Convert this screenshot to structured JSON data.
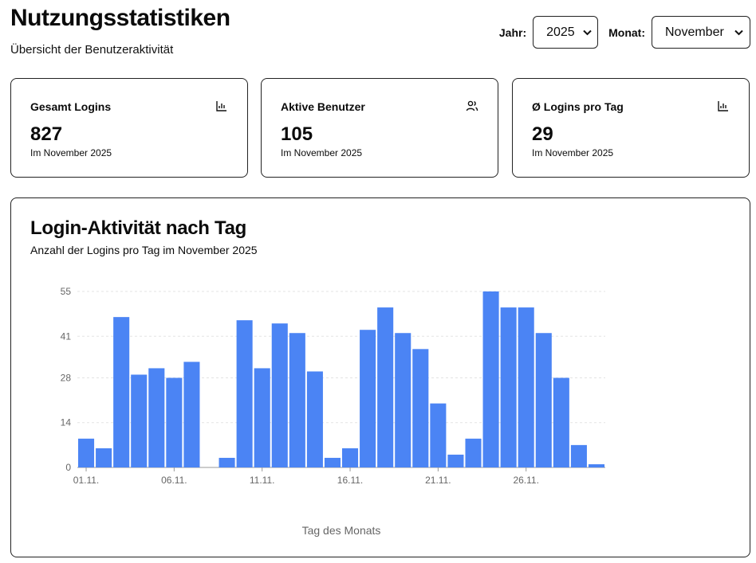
{
  "header": {
    "title": "Nutzungsstatistiken",
    "subtitle": "Übersicht der Benutzeraktivität"
  },
  "filters": {
    "year_label": "Jahr:",
    "year_value": "2025",
    "month_label": "Monat:",
    "month_value": "November"
  },
  "stats": [
    {
      "label": "Gesamt Logins",
      "value": "827",
      "caption": "Im November 2025",
      "icon": "bar-chart-icon"
    },
    {
      "label": "Aktive Benutzer",
      "value": "105",
      "caption": "Im November 2025",
      "icon": "users-icon"
    },
    {
      "label": "Ø Logins pro Tag",
      "value": "29",
      "caption": "Im November 2025",
      "icon": "bar-chart-icon"
    }
  ],
  "chart_card": {
    "title": "Login-Aktivität nach Tag",
    "subtitle": "Anzahl der Logins pro Tag im November 2025"
  },
  "chart_data": {
    "type": "bar",
    "categories": [
      "01.11.",
      "02.11.",
      "03.11.",
      "04.11.",
      "05.11.",
      "06.11.",
      "07.11.",
      "08.11.",
      "09.11.",
      "10.11.",
      "11.11.",
      "12.11.",
      "13.11.",
      "14.11.",
      "15.11.",
      "16.11.",
      "17.11.",
      "18.11.",
      "19.11.",
      "20.11.",
      "21.11.",
      "22.11.",
      "23.11.",
      "24.11.",
      "25.11.",
      "26.11.",
      "27.11.",
      "28.11.",
      "29.11.",
      "30.11."
    ],
    "values": [
      9,
      6,
      47,
      29,
      31,
      28,
      33,
      0,
      3,
      46,
      31,
      45,
      42,
      30,
      3,
      6,
      43,
      50,
      42,
      37,
      20,
      4,
      9,
      55,
      50,
      50,
      42,
      28,
      7,
      1
    ],
    "x_tick_labels": [
      "01.11.",
      "06.11.",
      "11.11.",
      "16.11.",
      "21.11.",
      "26.11."
    ],
    "y_ticks": [
      0,
      14,
      28,
      41,
      55
    ],
    "ylim": [
      0,
      55
    ],
    "xlabel": "Tag des Monats",
    "ylabel": "",
    "bar_color": "#4b84f4",
    "grid": true
  }
}
